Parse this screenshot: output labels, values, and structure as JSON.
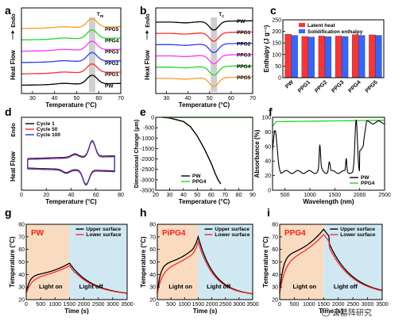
{
  "figure": {
    "watermark": "云墓阵研究",
    "colors": {
      "PW": "#000000",
      "PPG1": "#ff2a2a",
      "PPG2": "#2e3cf0",
      "PPG3": "#ff33ff",
      "PPG4": "#22d822",
      "PPG5": "#ff9922",
      "latent": "#ff3333",
      "solid": "#3366ff",
      "cycle1": "#000000",
      "cycle50": "#ff2a2a",
      "cycle100": "#3333cc",
      "upper": "#000000",
      "lower": "#ff2a2a",
      "light_on_bg": "#f9dcc0",
      "light_off_bg": "#cfe8f2"
    }
  },
  "chart_data": [
    {
      "panel": "a",
      "type": "line",
      "xlabel": "Temperature (°C)",
      "ylabel_top": "Endo",
      "ylabel": "Heat Flow",
      "xlim": [
        25,
        70
      ],
      "xticks": [
        30,
        40,
        50,
        60,
        70
      ],
      "marker_label": "T",
      "marker_sub": "m",
      "series_order_top_to_bottom": [
        "PPG5",
        "PPG4",
        "PPG3",
        "PPG2",
        "PPG1",
        "PW"
      ],
      "series": [
        {
          "name": "PW",
          "peak": 57
        },
        {
          "name": "PPG1",
          "peak": 57
        },
        {
          "name": "PPG2",
          "peak": 57
        },
        {
          "name": "PPG3",
          "peak": 57
        },
        {
          "name": "PPG4",
          "peak": 57
        },
        {
          "name": "PPG5",
          "peak": 57
        }
      ]
    },
    {
      "panel": "b",
      "type": "line",
      "xlabel": "Temperature (°C)",
      "ylabel_top": "Endo",
      "ylabel": "Heat Flow",
      "xlim": [
        25,
        70
      ],
      "xticks": [
        30,
        40,
        50,
        60,
        70
      ],
      "marker_label": "T",
      "marker_sub": "c",
      "series_order_top_to_bottom": [
        "PW",
        "PPG1",
        "PPG2",
        "PPG3",
        "PPG4",
        "PPG5"
      ],
      "series": [
        {
          "name": "PW",
          "peak": 52
        },
        {
          "name": "PPG1",
          "peak": 52
        },
        {
          "name": "PPG2",
          "peak": 52
        },
        {
          "name": "PPG3",
          "peak": 52
        },
        {
          "name": "PPG4",
          "peak": 52
        },
        {
          "name": "PPG5",
          "peak": 52
        }
      ]
    },
    {
      "panel": "c",
      "type": "bar",
      "ylabel": "Enthalpy (J g⁻¹)",
      "ylim": [
        0,
        250
      ],
      "yticks": [
        0,
        50,
        100,
        150,
        200,
        250
      ],
      "categories": [
        "PW",
        "PPG1",
        "PPG2",
        "PPG3",
        "PPG4",
        "PPG5"
      ],
      "legend": [
        "Latent heat",
        "Solidification enthalpy"
      ],
      "series": [
        {
          "name": "Latent heat",
          "values": [
            188,
            178,
            180,
            180,
            186,
            185
          ]
        },
        {
          "name": "Solidification enthalpy",
          "values": [
            183,
            176,
            177,
            178,
            183,
            183
          ]
        }
      ]
    },
    {
      "panel": "d",
      "type": "line",
      "xlabel": "Temperature (°C)",
      "ylabel_top": "Endo",
      "ylabel": "Heat Flow",
      "xlim": [
        0,
        80
      ],
      "xticks": [
        0,
        20,
        40,
        60,
        80
      ],
      "legend": [
        "Cycle 1",
        "Cycle 50",
        "Cycle 100"
      ]
    },
    {
      "panel": "e",
      "type": "line",
      "xlabel": "Temperature (°C)",
      "ylabel": "Dimensional Change (μm)",
      "xlim": [
        20,
        90
      ],
      "xticks": [
        20,
        30,
        40,
        50,
        60,
        70,
        80,
        90
      ],
      "ylim": [
        -3500,
        0
      ],
      "yticks": [
        0,
        -500,
        -1000,
        -1500,
        -2000,
        -2500,
        -3000,
        -3500
      ],
      "legend": [
        "PW",
        "PPG4"
      ],
      "series": [
        {
          "name": "PW",
          "x": [
            25,
            30,
            40,
            45,
            50,
            55,
            60,
            63,
            65,
            67
          ],
          "y": [
            0,
            -30,
            -200,
            -450,
            -900,
            -1500,
            -2200,
            -2700,
            -3000,
            -3200
          ]
        },
        {
          "name": "PPG4",
          "x": [
            25,
            90
          ],
          "y": [
            -5,
            -5
          ]
        }
      ]
    },
    {
      "panel": "f",
      "type": "line",
      "xlabel": "Wavelength (nm)",
      "ylabel": "Absorbance (%)",
      "xlim": [
        250,
        2500
      ],
      "xticks": [
        500,
        1000,
        1500,
        2000,
        2500
      ],
      "ylim": [
        0,
        100
      ],
      "yticks": [
        0,
        20,
        40,
        60,
        80,
        100
      ],
      "legend": [
        "PW",
        "PPG4"
      ]
    },
    {
      "panel": "g",
      "type": "line",
      "sample": "PW",
      "xlabel": "Time (s)",
      "ylabel": "Temperature (°C)",
      "xlim": [
        0,
        3500
      ],
      "xticks": [
        0,
        500,
        1000,
        1500,
        2000,
        2500,
        3000,
        3500
      ],
      "ylim": [
        20,
        80
      ],
      "yticks": [
        20,
        30,
        40,
        50,
        60,
        70,
        80
      ],
      "light_switch_x": 1500,
      "light_on": "Light on",
      "light_off": "Light off",
      "legend": [
        "Upper surface",
        "Lower surface"
      ]
    },
    {
      "panel": "h",
      "type": "line",
      "sample": "PiPG4",
      "xlabel": "Time (s)",
      "ylabel": "Temperature (°C)",
      "xlim": [
        0,
        3500
      ],
      "xticks": [
        0,
        500,
        1000,
        1500,
        2000,
        2500,
        3000,
        3500
      ],
      "ylim": [
        20,
        80
      ],
      "yticks": [
        20,
        30,
        40,
        50,
        60,
        70,
        80
      ],
      "light_switch_x": 1500,
      "light_on": "Light on",
      "light_off": "Light off",
      "legend": [
        "Upper surface",
        "Lower surface"
      ]
    },
    {
      "panel": "i",
      "type": "line",
      "sample": "PPG4",
      "xlabel": "Time (s)",
      "ylabel": "Temperature (°C)",
      "xlim": [
        0,
        3500
      ],
      "xticks": [
        0,
        500,
        1000,
        1500,
        2000,
        2500,
        3000,
        3500
      ],
      "ylim": [
        20,
        80
      ],
      "yticks": [
        20,
        30,
        40,
        50,
        60,
        70,
        80
      ],
      "light_switch_x": 1500,
      "light_on": "Light on",
      "light_off": "Light off",
      "legend": [
        "Upper surface",
        "Lower surface"
      ]
    }
  ]
}
